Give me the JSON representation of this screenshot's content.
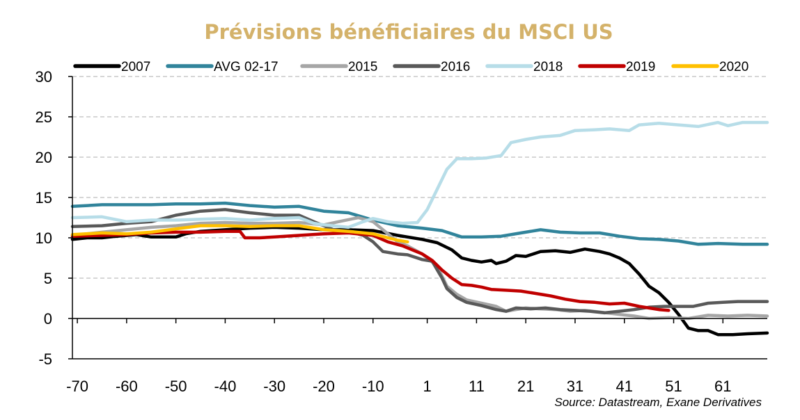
{
  "chart_data": {
    "type": "line",
    "title": "Prévisions bénéficiaires du MSCI US",
    "source": "Source: Datastream,  Exane Derivatives",
    "title_color": "#d4b26a",
    "xlim": [
      -71,
      70
    ],
    "ylim": [
      -5,
      30
    ],
    "x_ticks": [
      -70,
      -60,
      -50,
      -40,
      -30,
      -20,
      -10,
      1,
      11,
      21,
      31,
      41,
      51,
      61
    ],
    "y_ticks": [
      -5,
      0,
      5,
      10,
      15,
      20,
      25,
      30
    ],
    "grid": "horizontal dashed",
    "legend_position": "top",
    "series": [
      {
        "name": "2007",
        "color": "#000000",
        "points": [
          [
            -71,
            9.8
          ],
          [
            -68,
            10
          ],
          [
            -65,
            10
          ],
          [
            -62,
            10.2
          ],
          [
            -58,
            10.4
          ],
          [
            -55,
            10.1
          ],
          [
            -50,
            10.1
          ],
          [
            -48,
            10.5
          ],
          [
            -45,
            10.8
          ],
          [
            -40,
            11
          ],
          [
            -35,
            11.2
          ],
          [
            -30,
            11.3
          ],
          [
            -25,
            11.2
          ],
          [
            -20,
            11
          ],
          [
            -15,
            11
          ],
          [
            -10,
            10.9
          ],
          [
            -5,
            10.3
          ],
          [
            0,
            9.8
          ],
          [
            3,
            9.4
          ],
          [
            6,
            8.5
          ],
          [
            8,
            7.5
          ],
          [
            10,
            7.2
          ],
          [
            12,
            7
          ],
          [
            14,
            7.2
          ],
          [
            15,
            6.8
          ],
          [
            17,
            7.1
          ],
          [
            19,
            7.8
          ],
          [
            21,
            7.7
          ],
          [
            24,
            8.3
          ],
          [
            27,
            8.4
          ],
          [
            30,
            8.2
          ],
          [
            33,
            8.6
          ],
          [
            36,
            8.3
          ],
          [
            38,
            8
          ],
          [
            40,
            7.5
          ],
          [
            42,
            6.8
          ],
          [
            44,
            5.5
          ],
          [
            46,
            4
          ],
          [
            48,
            3.2
          ],
          [
            50,
            2
          ],
          [
            52,
            0.5
          ],
          [
            54,
            -1.2
          ],
          [
            56,
            -1.5
          ],
          [
            58,
            -1.5
          ],
          [
            60,
            -2
          ],
          [
            63,
            -2
          ],
          [
            66,
            -1.9
          ],
          [
            70,
            -1.8
          ]
        ]
      },
      {
        "name": "AVG 02-17",
        "color": "#31849b",
        "points": [
          [
            -71,
            13.9
          ],
          [
            -65,
            14.1
          ],
          [
            -60,
            14.1
          ],
          [
            -55,
            14.1
          ],
          [
            -50,
            14.2
          ],
          [
            -45,
            14.2
          ],
          [
            -40,
            14.3
          ],
          [
            -35,
            14
          ],
          [
            -30,
            13.8
          ],
          [
            -25,
            13.9
          ],
          [
            -20,
            13.3
          ],
          [
            -15,
            13.1
          ],
          [
            -10,
            12.2
          ],
          [
            -5,
            11.5
          ],
          [
            0,
            11.2
          ],
          [
            4,
            10.9
          ],
          [
            8,
            10.1
          ],
          [
            12,
            10.1
          ],
          [
            16,
            10.2
          ],
          [
            20,
            10.6
          ],
          [
            24,
            11
          ],
          [
            28,
            10.7
          ],
          [
            32,
            10.6
          ],
          [
            36,
            10.6
          ],
          [
            40,
            10.2
          ],
          [
            44,
            9.9
          ],
          [
            48,
            9.8
          ],
          [
            52,
            9.6
          ],
          [
            56,
            9.2
          ],
          [
            60,
            9.3
          ],
          [
            65,
            9.2
          ],
          [
            70,
            9.2
          ]
        ]
      },
      {
        "name": "2015",
        "color": "#a6a6a6",
        "points": [
          [
            -71,
            10.3
          ],
          [
            -65,
            10.7
          ],
          [
            -60,
            11
          ],
          [
            -55,
            11.3
          ],
          [
            -50,
            11.5
          ],
          [
            -45,
            11.8
          ],
          [
            -40,
            11.9
          ],
          [
            -35,
            11.8
          ],
          [
            -30,
            11.8
          ],
          [
            -25,
            11.9
          ],
          [
            -20,
            11.6
          ],
          [
            -17,
            12
          ],
          [
            -13,
            12.5
          ],
          [
            -10,
            12
          ],
          [
            -8,
            11
          ],
          [
            -5,
            9.5
          ],
          [
            -3,
            9
          ],
          [
            0,
            8
          ],
          [
            3,
            6.5
          ],
          [
            5,
            4
          ],
          [
            7,
            3
          ],
          [
            9,
            2.3
          ],
          [
            12,
            1.9
          ],
          [
            15,
            1.5
          ],
          [
            17,
            0.9
          ],
          [
            19,
            1.1
          ],
          [
            21,
            1.3
          ],
          [
            24,
            1.2
          ],
          [
            27,
            1.1
          ],
          [
            30,
            0.9
          ],
          [
            33,
            1
          ],
          [
            36,
            0.8
          ],
          [
            40,
            0.5
          ],
          [
            43,
            0.3
          ],
          [
            46,
            0
          ],
          [
            50,
            0.1
          ],
          [
            54,
            0
          ],
          [
            58,
            0.4
          ],
          [
            62,
            0.3
          ],
          [
            66,
            0.4
          ],
          [
            70,
            0.3
          ]
        ]
      },
      {
        "name": "2016",
        "color": "#595959",
        "points": [
          [
            -71,
            11.4
          ],
          [
            -65,
            11.5
          ],
          [
            -60,
            11.8
          ],
          [
            -55,
            12
          ],
          [
            -50,
            12.8
          ],
          [
            -45,
            13.3
          ],
          [
            -40,
            13.5
          ],
          [
            -35,
            13.1
          ],
          [
            -30,
            12.8
          ],
          [
            -25,
            12.8
          ],
          [
            -22,
            12
          ],
          [
            -20,
            11.5
          ],
          [
            -18,
            11
          ],
          [
            -15,
            10.8
          ],
          [
            -12,
            10.3
          ],
          [
            -10,
            9.5
          ],
          [
            -8,
            8.3
          ],
          [
            -5,
            8
          ],
          [
            -3,
            7.9
          ],
          [
            0,
            7.3
          ],
          [
            2,
            7.1
          ],
          [
            4,
            5
          ],
          [
            5,
            3.7
          ],
          [
            7,
            2.6
          ],
          [
            9,
            2
          ],
          [
            12,
            1.6
          ],
          [
            15,
            1.1
          ],
          [
            17,
            0.9
          ],
          [
            19,
            1.3
          ],
          [
            22,
            1.2
          ],
          [
            25,
            1.3
          ],
          [
            28,
            1.1
          ],
          [
            31,
            1
          ],
          [
            34,
            0.9
          ],
          [
            37,
            0.7
          ],
          [
            40,
            0.9
          ],
          [
            43,
            1.1
          ],
          [
            46,
            1.4
          ],
          [
            49,
            1.5
          ],
          [
            52,
            1.5
          ],
          [
            55,
            1.5
          ],
          [
            58,
            1.9
          ],
          [
            61,
            2
          ],
          [
            64,
            2.1
          ],
          [
            70,
            2.1
          ]
        ]
      },
      {
        "name": "2018",
        "color": "#b7dde8",
        "points": [
          [
            -71,
            12.5
          ],
          [
            -65,
            12.6
          ],
          [
            -60,
            12
          ],
          [
            -55,
            12.2
          ],
          [
            -50,
            12.2
          ],
          [
            -45,
            12.3
          ],
          [
            -40,
            12.4
          ],
          [
            -35,
            12.2
          ],
          [
            -30,
            12.4
          ],
          [
            -25,
            12.5
          ],
          [
            -22,
            11.8
          ],
          [
            -20,
            11.6
          ],
          [
            -15,
            11.3
          ],
          [
            -12,
            12
          ],
          [
            -10,
            12.4
          ],
          [
            -7,
            12
          ],
          [
            -4,
            11.8
          ],
          [
            -1,
            11.9
          ],
          [
            1,
            13.5
          ],
          [
            3,
            16
          ],
          [
            5,
            18.5
          ],
          [
            7,
            19.8
          ],
          [
            10,
            19.8
          ],
          [
            13,
            19.9
          ],
          [
            16,
            20.2
          ],
          [
            18,
            21.8
          ],
          [
            21,
            22.2
          ],
          [
            24,
            22.5
          ],
          [
            28,
            22.7
          ],
          [
            31,
            23.3
          ],
          [
            35,
            23.4
          ],
          [
            38,
            23.5
          ],
          [
            42,
            23.3
          ],
          [
            44,
            24
          ],
          [
            48,
            24.2
          ],
          [
            52,
            24
          ],
          [
            56,
            23.8
          ],
          [
            60,
            24.3
          ],
          [
            62,
            23.9
          ],
          [
            65,
            24.3
          ],
          [
            70,
            24.3
          ]
        ]
      },
      {
        "name": "2019",
        "color": "#c00000",
        "points": [
          [
            -71,
            10.2
          ],
          [
            -65,
            10.3
          ],
          [
            -60,
            10.4
          ],
          [
            -55,
            10.6
          ],
          [
            -50,
            10.7
          ],
          [
            -45,
            10.7
          ],
          [
            -40,
            10.8
          ],
          [
            -37,
            10.8
          ],
          [
            -36,
            10
          ],
          [
            -33,
            10
          ],
          [
            -30,
            10.1
          ],
          [
            -25,
            10.3
          ],
          [
            -20,
            10.5
          ],
          [
            -15,
            10.6
          ],
          [
            -10,
            10.3
          ],
          [
            -7,
            9.5
          ],
          [
            -4,
            9
          ],
          [
            -2,
            8.5
          ],
          [
            0,
            8
          ],
          [
            2,
            7.2
          ],
          [
            4,
            6
          ],
          [
            6,
            5
          ],
          [
            8,
            4.2
          ],
          [
            10,
            4.1
          ],
          [
            12,
            3.9
          ],
          [
            14,
            3.6
          ],
          [
            17,
            3.5
          ],
          [
            20,
            3.4
          ],
          [
            23,
            3.1
          ],
          [
            26,
            2.8
          ],
          [
            29,
            2.4
          ],
          [
            32,
            2.1
          ],
          [
            35,
            2
          ],
          [
            38,
            1.8
          ],
          [
            41,
            1.9
          ],
          [
            44,
            1.5
          ],
          [
            46,
            1.3
          ],
          [
            48,
            1.1
          ],
          [
            50,
            1
          ]
        ]
      },
      {
        "name": "2020",
        "color": "#ffc000",
        "points": [
          [
            -71,
            10.4
          ],
          [
            -65,
            10.6
          ],
          [
            -60,
            10.5
          ],
          [
            -55,
            10.7
          ],
          [
            -50,
            11.1
          ],
          [
            -45,
            11.5
          ],
          [
            -40,
            11.5
          ],
          [
            -35,
            11.4
          ],
          [
            -30,
            11.5
          ],
          [
            -25,
            11.5
          ],
          [
            -20,
            11
          ],
          [
            -15,
            10.8
          ],
          [
            -10,
            10.5
          ],
          [
            -7,
            10
          ],
          [
            -5,
            9.7
          ],
          [
            -3,
            9.5
          ]
        ]
      }
    ]
  }
}
